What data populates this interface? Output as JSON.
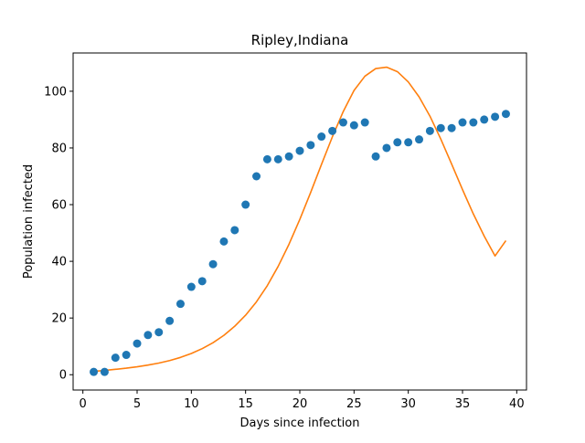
{
  "chart_data": {
    "type": "scatter",
    "title": "Ripley,Indiana",
    "xlabel": "Days since infection",
    "ylabel": "Population infected",
    "xlim": [
      -0.9,
      40.9
    ],
    "ylim": [
      -5.4,
      113.5
    ],
    "xticks": [
      0,
      5,
      10,
      15,
      20,
      25,
      30,
      35,
      40
    ],
    "yticks": [
      0,
      20,
      40,
      60,
      80,
      100
    ],
    "grid": false,
    "legend": "none",
    "series": [
      {
        "kind": "scatter",
        "color": "#1f77b4",
        "x": [
          1,
          2,
          3,
          4,
          5,
          6,
          7,
          8,
          9,
          10,
          11,
          12,
          13,
          14,
          15,
          16,
          17,
          18,
          19,
          20,
          21,
          22,
          23,
          24,
          25,
          26,
          27,
          28,
          29,
          30,
          31,
          32,
          33,
          34,
          35,
          36,
          37,
          38,
          39
        ],
        "y": [
          1,
          1,
          6,
          7,
          11,
          14,
          15,
          19,
          25,
          31,
          33,
          39,
          47,
          51,
          60,
          70,
          76,
          76,
          77,
          79,
          81,
          84,
          86,
          89,
          88,
          89,
          77,
          80,
          82,
          82,
          83,
          86,
          87,
          87,
          89,
          89,
          90,
          91,
          92
        ]
      },
      {
        "kind": "line",
        "color": "#ff7f0e",
        "x": [
          1,
          2,
          3,
          4,
          5,
          6,
          7,
          8,
          9,
          10,
          11,
          12,
          13,
          14,
          15,
          16,
          17,
          18,
          19,
          20,
          21,
          22,
          23,
          24,
          25,
          26,
          27,
          28,
          29,
          30,
          31,
          32,
          33,
          34,
          35,
          36,
          37,
          38,
          39
        ],
        "y": [
          1.2,
          1.5,
          1.9,
          2.3,
          2.8,
          3.4,
          4.1,
          5.0,
          6.1,
          7.5,
          9.2,
          11.3,
          13.9,
          17.1,
          21.0,
          25.7,
          31.4,
          38.2,
          46.0,
          54.8,
          64.3,
          74.2,
          83.9,
          92.8,
          100.3,
          105.3,
          108.0,
          108.5,
          106.9,
          103.3,
          98.0,
          91.2,
          83.1,
          74.3,
          65.3,
          56.7,
          48.9,
          41.9,
          47.3
        ]
      }
    ]
  }
}
